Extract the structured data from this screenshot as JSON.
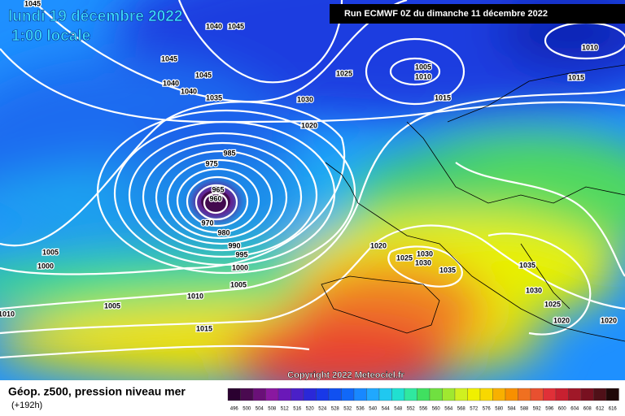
{
  "header": {
    "date": "lundi 19 décembre 2022",
    "time": "1:00 locale",
    "run": "Run ECMWF 0Z du dimanche 11 décembre 2022"
  },
  "isobar_labels": [
    "1045",
    "1040",
    "1045",
    "1045",
    "1045",
    "1040",
    "1040",
    "1035",
    "1030",
    "1025",
    "1020",
    "1005",
    "1010",
    "1015",
    "1010",
    "1015",
    "985",
    "975",
    "965",
    "960",
    "970",
    "980",
    "990",
    "995",
    "1000",
    "1005",
    "1010",
    "1015",
    "1005",
    "1005",
    "1000",
    "1010",
    "1020",
    "1025",
    "1030",
    "1030",
    "1035",
    "1035",
    "1030",
    "1025",
    "1020",
    "1020"
  ],
  "copyright": "Copyright 2022 Meteociel.fr",
  "legend": {
    "title": "Géop. z500, pression niveau mer",
    "subtitle": "(+192h)",
    "levels": [
      "496",
      "500",
      "504",
      "508",
      "512",
      "516",
      "520",
      "524",
      "528",
      "532",
      "536",
      "540",
      "544",
      "548",
      "552",
      "556",
      "560",
      "564",
      "568",
      "572",
      "576",
      "580",
      "584",
      "588",
      "592",
      "596",
      "600",
      "604",
      "608",
      "612",
      "616"
    ],
    "colors": [
      "#2a0030",
      "#4a0a50",
      "#6a1078",
      "#8a18a0",
      "#6a18b8",
      "#4a20c8",
      "#2a28d8",
      "#1838e8",
      "#1050f0",
      "#1068f8",
      "#1888ff",
      "#20a8ff",
      "#20c8f0",
      "#20e0d0",
      "#30e8a0",
      "#40e060",
      "#70e040",
      "#a0e830",
      "#d0f020",
      "#f0f000",
      "#f8d800",
      "#f8b000",
      "#f89000",
      "#f07020",
      "#e85030",
      "#e03038",
      "#c82030",
      "#a01828",
      "#781020",
      "#501018",
      "#200808"
    ]
  }
}
